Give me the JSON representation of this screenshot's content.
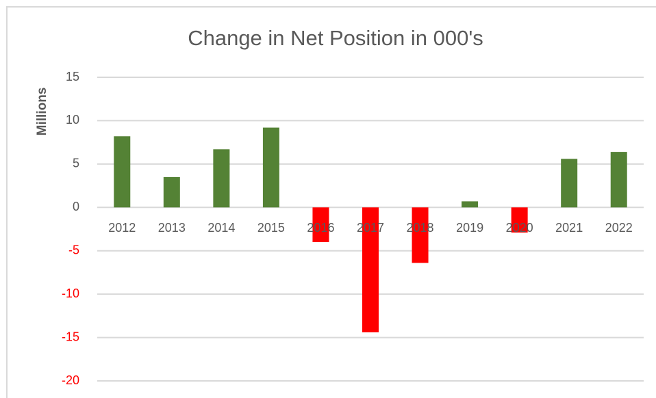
{
  "chart_data": {
    "type": "bar",
    "title": "Change in Net Position in 000's",
    "y_label": "Millions",
    "categories": [
      "2012",
      "2013",
      "2014",
      "2015",
      "2016",
      "2017",
      "2018",
      "2019",
      "2020",
      "2021",
      "2022"
    ],
    "values": [
      8.2,
      3.5,
      6.7,
      9.2,
      -4.0,
      -14.4,
      -6.4,
      0.7,
      -2.9,
      5.6,
      6.4
    ],
    "color": "#548235",
    "negative_color": "#ff0000",
    "ylim": [
      -20,
      15
    ],
    "yticks": [
      15,
      10,
      5,
      0,
      -5,
      -10,
      -15,
      -20
    ],
    "grid": true
  }
}
